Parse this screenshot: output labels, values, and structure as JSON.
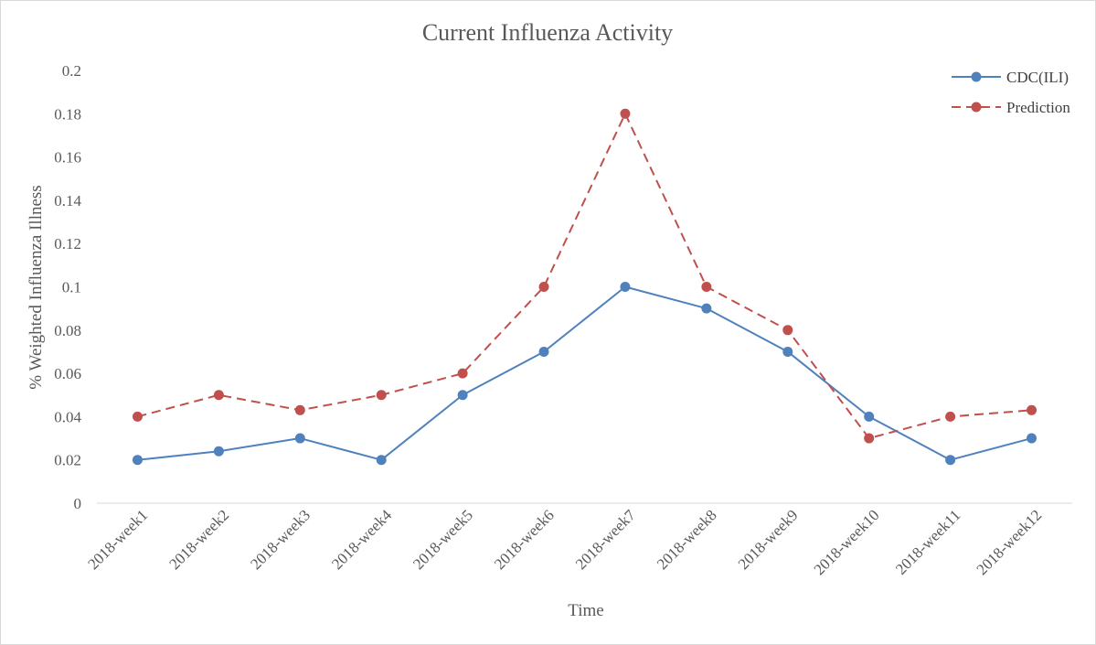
{
  "chart_data": {
    "type": "line",
    "title": "Current Influenza Activity",
    "xlabel": "Time",
    "ylabel": "% Weighted Influenza Illness",
    "ylim": [
      0,
      0.2
    ],
    "yticks": [
      "0",
      "0.02",
      "0.04",
      "0.06",
      "0.08",
      "0.1",
      "0.12",
      "0.14",
      "0.16",
      "0.18",
      "0.2"
    ],
    "categories": [
      "2018-week1",
      "2018-week2",
      "2018-week3",
      "2018-week4",
      "2018-week5",
      "2018-week6",
      "2018-week7",
      "2018-week8",
      "2018-week9",
      "2018-week10",
      "2018-week11",
      "2018-week12"
    ],
    "grid": false,
    "legend_position": "top-right",
    "series": [
      {
        "name": "CDC(ILI)",
        "color": "#4f81bd",
        "line_style": "solid",
        "marker": "circle",
        "values": [
          0.02,
          0.024,
          0.03,
          0.02,
          0.05,
          0.07,
          0.1,
          0.09,
          0.07,
          0.04,
          0.02,
          0.03
        ]
      },
      {
        "name": "Prediction",
        "color": "#c0504d",
        "line_style": "dashed",
        "marker": "circle",
        "values": [
          0.04,
          0.05,
          0.043,
          0.05,
          0.06,
          0.1,
          0.18,
          0.1,
          0.08,
          0.03,
          0.04,
          0.043
        ]
      }
    ]
  }
}
